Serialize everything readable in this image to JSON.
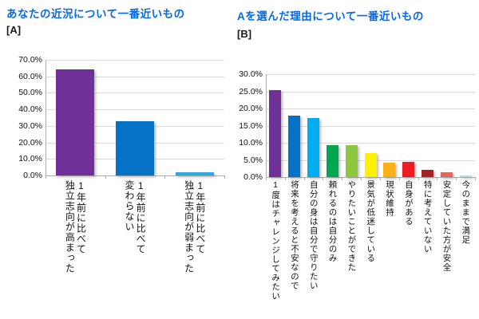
{
  "style": {
    "background": "#FFFFFF",
    "title_color": "#0569E8",
    "tag_color": "#1A1A1A",
    "grid_color": "#DADADA",
    "axis_color": "#ADADAD"
  },
  "chart_data": [
    {
      "type": "bar",
      "title": "あなたの近況について一番近いもの",
      "tag": "[A]",
      "categories": [
        "1年前に比べて\n独立志向が高まった",
        "1年前に比べて\n変わらない",
        "1年前に比べて\n独立志向が弱まった"
      ],
      "values": [
        64.3,
        32.9,
        2.1
      ],
      "colors": [
        "#6F3198",
        "#0572C6",
        "#29ABE2"
      ],
      "unit": "%",
      "ylim": [
        0,
        70
      ],
      "ytick_step": 10,
      "ytick_labels": [
        "0.0%",
        "10.0%",
        "20.0%",
        "30.0%",
        "40.0%",
        "50.0%",
        "60.0%",
        "70.0%"
      ],
      "grid": true,
      "legend": "none",
      "xlabel": "",
      "ylabel": ""
    },
    {
      "type": "bar",
      "title": "Aを選んだ理由について一番近いもの",
      "tag": "[B]",
      "categories": [
        "1度はチャレンジしてみたい",
        "将来を考えると不安なので",
        "自分の身は自分で守りたい",
        "頼れるのは自分のみ",
        "やりたいことができた",
        "景気が低迷している",
        "現状維持",
        "自身がある",
        "特に考えていない",
        "安定していた方が安全",
        "今のままで満足"
      ],
      "values": [
        25.3,
        17.8,
        17.3,
        9.4,
        9.3,
        7.0,
        4.2,
        4.4,
        2.1,
        1.3,
        0.4
      ],
      "colors": [
        "#6F3198",
        "#0572C6",
        "#00AEEF",
        "#00A650",
        "#8DC63F",
        "#FFF100",
        "#FBB116",
        "#ED1C24",
        "#A62121",
        "#DC6B66",
        "#BBDEE5"
      ],
      "unit": "%",
      "ylim": [
        0,
        30
      ],
      "ytick_step": 5,
      "ytick_labels": [
        "0.0%",
        "5.0%",
        "10.0%",
        "15.0%",
        "20.0%",
        "25.0%",
        "30.0%"
      ],
      "grid": true,
      "legend": "none",
      "xlabel": "",
      "ylabel": ""
    }
  ]
}
